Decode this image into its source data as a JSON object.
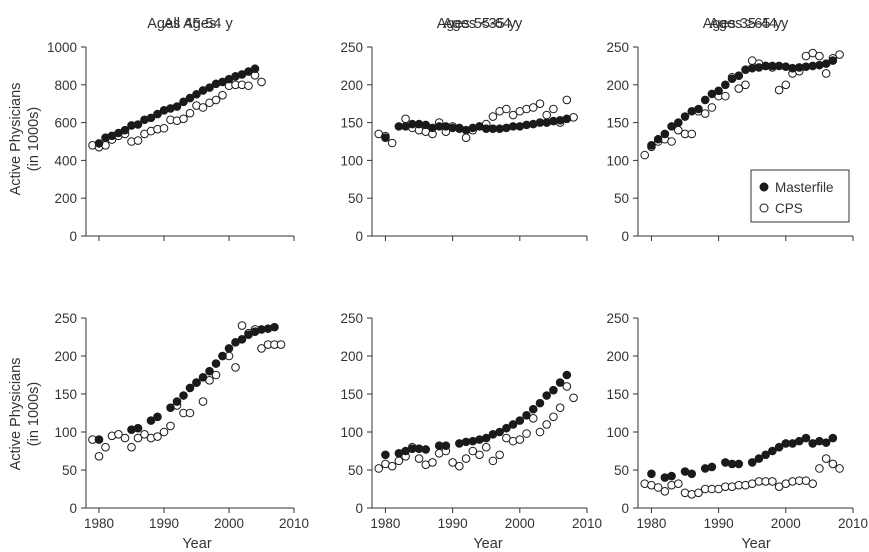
{
  "figure": {
    "ylabel_line1": "Active Physicians",
    "ylabel_line2": "(in 1000s)",
    "xlabel": "Year"
  },
  "legend": {
    "masterfile": "Masterfile",
    "cps": "CPS",
    "placement": "bottom-right of panel 3"
  },
  "colors": {
    "masterfile": "#1a1a1a",
    "cps": "#ffffff",
    "stroke": "#1a1a1a",
    "axis": "#333333"
  },
  "chart_data": [
    {
      "type": "scatter",
      "title": "All Ages",
      "xlim": [
        1978,
        2010
      ],
      "xticks": [
        "1980",
        "1990",
        "2000",
        "2010"
      ],
      "ylim": [
        0,
        1000
      ],
      "yticks": [
        "0",
        "200",
        "400",
        "600",
        "800",
        "1000"
      ],
      "series": [
        {
          "name": "Masterfile",
          "x": [
            1980,
            1981,
            1982,
            1983,
            1984,
            1985,
            1986,
            1987,
            1988,
            1989,
            1990,
            1991,
            1992,
            1993,
            1994,
            1995,
            1996,
            1997,
            1998,
            1999,
            2000,
            2001,
            2002,
            2003,
            2004
          ],
          "y": [
            490,
            520,
            530,
            545,
            560,
            585,
            590,
            615,
            625,
            645,
            665,
            675,
            685,
            710,
            730,
            750,
            770,
            785,
            805,
            815,
            830,
            845,
            855,
            870,
            885
          ]
        },
        {
          "name": "CPS",
          "x": [
            1979,
            1980,
            1981,
            1982,
            1983,
            1984,
            1985,
            1986,
            1987,
            1988,
            1989,
            1990,
            1991,
            1992,
            1993,
            1994,
            1995,
            1996,
            1997,
            1998,
            1999,
            2000,
            2001,
            2002,
            2003,
            2004,
            2005
          ],
          "y": [
            480,
            470,
            480,
            510,
            530,
            540,
            500,
            505,
            540,
            555,
            565,
            570,
            615,
            610,
            620,
            650,
            690,
            680,
            705,
            720,
            745,
            795,
            800,
            800,
            795,
            850,
            815
          ]
        }
      ]
    },
    {
      "type": "scatter",
      "title": "Ages <35 y",
      "xlim": [
        1978,
        2010
      ],
      "xticks": [
        "1980",
        "1990",
        "2000",
        "2010"
      ],
      "ylim": [
        0,
        250
      ],
      "yticks": [
        "0",
        "50",
        "100",
        "150",
        "200",
        "250"
      ],
      "series": [
        {
          "name": "Masterfile",
          "x": [
            1980,
            1982,
            1983,
            1984,
            1985,
            1986,
            1987,
            1988,
            1989,
            1990,
            1991,
            1992,
            1993,
            1994,
            1995,
            1996,
            1997,
            1998,
            1999,
            2000,
            2001,
            2002,
            2003,
            2004,
            2005,
            2006,
            2007
          ],
          "y": [
            130,
            145,
            145,
            148,
            148,
            147,
            143,
            145,
            145,
            143,
            142,
            140,
            143,
            145,
            142,
            142,
            142,
            143,
            145,
            145,
            147,
            148,
            150,
            150,
            152,
            153,
            155
          ]
        },
        {
          "name": "CPS",
          "x": [
            1979,
            1980,
            1981,
            1983,
            1984,
            1985,
            1986,
            1987,
            1988,
            1989,
            1990,
            1991,
            1992,
            1993,
            1994,
            1995,
            1996,
            1997,
            1998,
            1999,
            2000,
            2001,
            2002,
            2003,
            2004,
            2005,
            2006,
            2007,
            2008
          ],
          "y": [
            135,
            132,
            123,
            155,
            143,
            140,
            138,
            135,
            150,
            138,
            145,
            143,
            130,
            140,
            145,
            148,
            158,
            165,
            168,
            160,
            165,
            168,
            170,
            175,
            160,
            168,
            150,
            180,
            157
          ]
        }
      ]
    },
    {
      "type": "scatter",
      "title": "Ages 35-44 y",
      "xlim": [
        1978,
        2010
      ],
      "xticks": [
        "1980",
        "1990",
        "2000",
        "2010"
      ],
      "ylim": [
        0,
        250
      ],
      "yticks": [
        "0",
        "50",
        "100",
        "150",
        "200",
        "250"
      ],
      "series": [
        {
          "name": "Masterfile",
          "x": [
            1980,
            1981,
            1982,
            1983,
            1984,
            1985,
            1986,
            1987,
            1988,
            1989,
            1990,
            1991,
            1992,
            1993,
            1994,
            1995,
            1996,
            1997,
            1998,
            1999,
            2000,
            2001,
            2002,
            2003,
            2004,
            2005,
            2006,
            2007
          ],
          "y": [
            120,
            128,
            135,
            145,
            150,
            158,
            165,
            168,
            180,
            188,
            192,
            200,
            208,
            212,
            220,
            222,
            223,
            225,
            225,
            225,
            224,
            222,
            223,
            224,
            225,
            226,
            228,
            232
          ]
        },
        {
          "name": "CPS",
          "x": [
            1979,
            1980,
            1981,
            1982,
            1983,
            1984,
            1985,
            1986,
            1987,
            1988,
            1989,
            1990,
            1991,
            1992,
            1993,
            1994,
            1995,
            1996,
            1997,
            1998,
            1999,
            2000,
            2001,
            2002,
            2003,
            2004,
            2005,
            2006,
            2007,
            2008
          ],
          "y": [
            107,
            118,
            125,
            128,
            125,
            140,
            135,
            135,
            165,
            162,
            170,
            185,
            185,
            210,
            195,
            200,
            232,
            228,
            225,
            223,
            193,
            200,
            215,
            218,
            238,
            242,
            238,
            215,
            235,
            240
          ]
        }
      ]
    },
    {
      "type": "scatter",
      "title": "Ages 45-54 y",
      "xlim": [
        1978,
        2010
      ],
      "xticks": [
        "1980",
        "1990",
        "2000",
        "2010"
      ],
      "ylim": [
        0,
        250
      ],
      "yticks": [
        "0",
        "50",
        "100",
        "150",
        "200",
        "250"
      ],
      "series": [
        {
          "name": "Masterfile",
          "x": [
            1980,
            1985,
            1986,
            1988,
            1989,
            1991,
            1992,
            1993,
            1994,
            1995,
            1996,
            1997,
            1998,
            1999,
            2000,
            2001,
            2002,
            2003,
            2004,
            2005,
            2006,
            2007
          ],
          "y": [
            90,
            103,
            105,
            115,
            120,
            132,
            140,
            148,
            158,
            165,
            172,
            180,
            190,
            200,
            210,
            218,
            222,
            228,
            232,
            235,
            236,
            238
          ]
        },
        {
          "name": "CPS",
          "x": [
            1979,
            1980,
            1981,
            1982,
            1983,
            1984,
            1985,
            1986,
            1987,
            1988,
            1989,
            1990,
            1991,
            1992,
            1993,
            1994,
            1995,
            1996,
            1997,
            1998,
            1999,
            2000,
            2001,
            2002,
            2003,
            2004,
            2005,
            2006,
            2007,
            2008
          ],
          "y": [
            90,
            68,
            80,
            95,
            97,
            92,
            80,
            92,
            97,
            92,
            94,
            100,
            108,
            135,
            125,
            125,
            165,
            140,
            168,
            175,
            200,
            200,
            185,
            240,
            230,
            235,
            210,
            215,
            215,
            215
          ]
        }
      ]
    },
    {
      "type": "scatter",
      "title": "Ages 55-64 y",
      "xlim": [
        1978,
        2010
      ],
      "xticks": [
        "1980",
        "1990",
        "2000",
        "2010"
      ],
      "ylim": [
        0,
        250
      ],
      "yticks": [
        "0",
        "50",
        "100",
        "150",
        "200",
        "250"
      ],
      "series": [
        {
          "name": "Masterfile",
          "x": [
            1980,
            1982,
            1983,
            1984,
            1985,
            1986,
            1988,
            1989,
            1991,
            1992,
            1993,
            1994,
            1995,
            1996,
            1997,
            1998,
            1999,
            2000,
            2001,
            2002,
            2003,
            2004,
            2005,
            2006,
            2007
          ],
          "y": [
            70,
            72,
            75,
            78,
            78,
            77,
            82,
            82,
            85,
            87,
            88,
            90,
            92,
            97,
            100,
            105,
            110,
            115,
            122,
            130,
            138,
            148,
            155,
            165,
            175
          ]
        },
        {
          "name": "CPS",
          "x": [
            1979,
            1980,
            1981,
            1982,
            1983,
            1984,
            1985,
            1986,
            1987,
            1988,
            1989,
            1990,
            1991,
            1992,
            1993,
            1994,
            1995,
            1996,
            1997,
            1998,
            1999,
            2000,
            2001,
            2002,
            2003,
            2004,
            2005,
            2006,
            2007,
            2008
          ],
          "y": [
            52,
            58,
            55,
            62,
            68,
            80,
            65,
            57,
            60,
            72,
            75,
            60,
            55,
            65,
            75,
            70,
            80,
            62,
            70,
            92,
            88,
            90,
            98,
            118,
            100,
            110,
            120,
            132,
            160,
            145
          ]
        }
      ]
    },
    {
      "type": "scatter",
      "title": "Ages ≥65 y",
      "xlim": [
        1978,
        2010
      ],
      "xticks": [
        "1980",
        "1990",
        "2000",
        "2010"
      ],
      "ylim": [
        0,
        250
      ],
      "yticks": [
        "0",
        "50",
        "100",
        "150",
        "200",
        "250"
      ],
      "series": [
        {
          "name": "Masterfile",
          "x": [
            1980,
            1982,
            1983,
            1985,
            1986,
            1988,
            1989,
            1991,
            1992,
            1993,
            1995,
            1996,
            1997,
            1998,
            1999,
            2000,
            2001,
            2002,
            2003,
            2004,
            2005,
            2006,
            2007
          ],
          "y": [
            45,
            40,
            42,
            48,
            45,
            52,
            54,
            60,
            58,
            58,
            60,
            65,
            70,
            75,
            80,
            85,
            85,
            88,
            92,
            85,
            88,
            86,
            92
          ]
        },
        {
          "name": "CPS",
          "x": [
            1979,
            1980,
            1981,
            1982,
            1983,
            1984,
            1985,
            1986,
            1987,
            1988,
            1989,
            1990,
            1991,
            1992,
            1993,
            1994,
            1995,
            1996,
            1997,
            1998,
            1999,
            2000,
            2001,
            2002,
            2003,
            2004,
            2005,
            2006,
            2007,
            2008
          ],
          "y": [
            32,
            30,
            27,
            22,
            30,
            32,
            20,
            18,
            20,
            25,
            25,
            25,
            28,
            28,
            30,
            30,
            32,
            35,
            35,
            35,
            28,
            32,
            35,
            36,
            36,
            32,
            52,
            65,
            58,
            52
          ]
        }
      ]
    }
  ]
}
